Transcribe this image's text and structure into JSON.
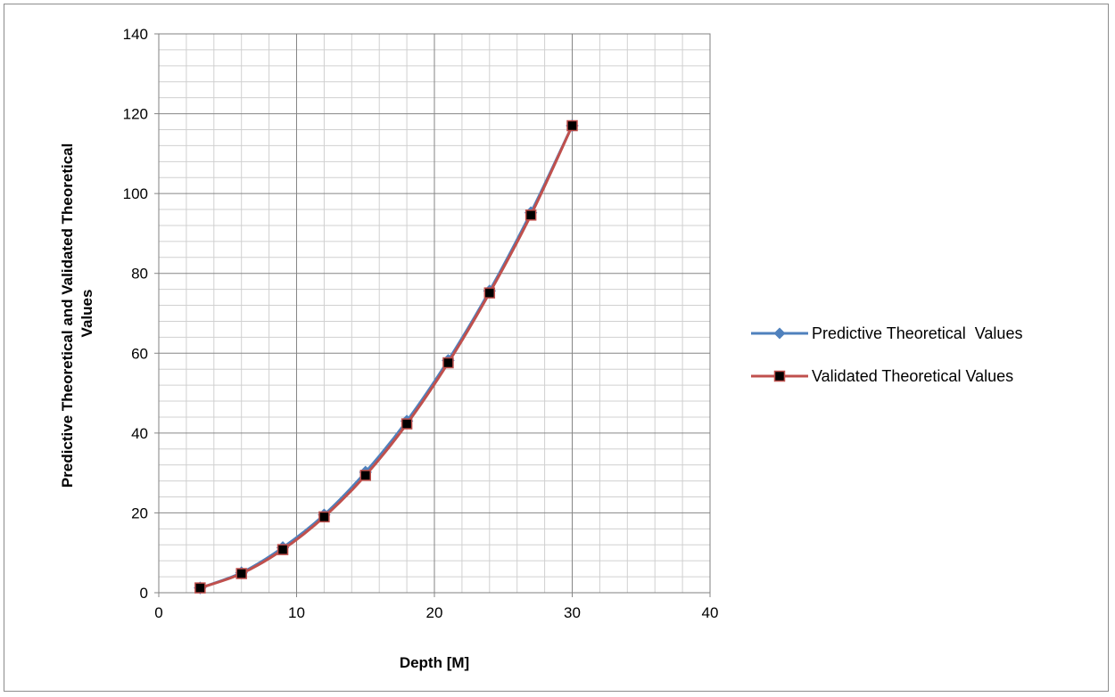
{
  "chart_data": {
    "type": "line",
    "title": "",
    "xlabel": "Depth [M]",
    "ylabel": [
      "Predictive Theoretical and Validated Theoretical",
      "Values"
    ],
    "xlim": [
      0,
      40
    ],
    "ylim": [
      0,
      140
    ],
    "x_major_step": 10,
    "y_major_step": 20,
    "x_minor_step": 2,
    "y_minor_step": 4,
    "x_ticks": [
      "0",
      "10",
      "20",
      "30",
      "40"
    ],
    "y_ticks": [
      "0",
      "20",
      "40",
      "60",
      "80",
      "100",
      "120",
      "140"
    ],
    "grid": "major and minor",
    "legend_position": "right",
    "x": [
      3,
      6,
      9,
      12,
      15,
      18,
      21,
      24,
      27,
      30
    ],
    "series": [
      {
        "name": "Predictive Theoretical  Values",
        "color": "#4f81bd",
        "marker": "diamond",
        "values": [
          1.2,
          5.0,
          11.3,
          19.5,
          30.2,
          43.0,
          58.2,
          75.6,
          95.2,
          117.0
        ]
      },
      {
        "name": "Validated Theoretical Values",
        "color": "#c0504d",
        "marker": "square",
        "marker_fill": "#000000",
        "values": [
          1.2,
          4.8,
          10.8,
          19.0,
          29.4,
          42.3,
          57.6,
          75.1,
          94.6,
          117.0
        ]
      }
    ]
  }
}
